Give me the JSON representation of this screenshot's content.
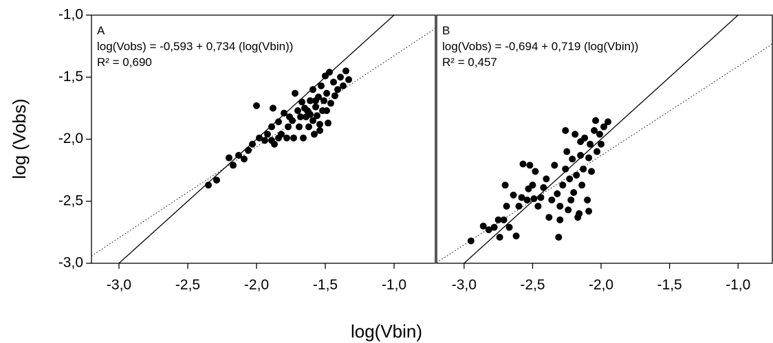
{
  "y_axis_label": "log (Vobs)",
  "x_axis_label": "log(Vbin)",
  "chart_data": [
    {
      "type": "scatter",
      "panel": "A",
      "equation": "log(Vobs) = -0,593 + 0,734 (log(Vbin))",
      "r_squared": "R² = 0,690",
      "fit": {
        "intercept": -0.593,
        "slope": 0.734
      },
      "color": "#000000",
      "xlim": [
        -3.2,
        -0.7
      ],
      "ylim": [
        -3,
        -1
      ],
      "xticks": [
        {
          "value": -3,
          "label": "-3,0"
        },
        {
          "value": -2.5,
          "label": "-2,5"
        },
        {
          "value": -2,
          "label": "-2,0"
        },
        {
          "value": -1.5,
          "label": "-1,5"
        },
        {
          "value": -1,
          "label": "-1,0"
        }
      ],
      "yticks": [
        {
          "value": -3,
          "label": "-3,0"
        },
        {
          "value": -2.5,
          "label": "-2,5"
        },
        {
          "value": -2,
          "label": "-2,0"
        },
        {
          "value": -1.5,
          "label": "-1,5"
        },
        {
          "value": -1,
          "label": "-1,0"
        }
      ],
      "x": [
        -2.35,
        -2.29,
        -2.2,
        -2.17,
        -2.13,
        -2.09,
        -2.06,
        -2.03,
        -2.0,
        -1.98,
        -1.94,
        -1.92,
        -1.89,
        -1.88,
        -1.87,
        -1.84,
        -1.82,
        -1.8,
        -1.78,
        -1.77,
        -1.74,
        -1.73,
        -1.72,
        -1.7,
        -1.69,
        -1.67,
        -1.66,
        -1.64,
        -1.63,
        -1.62,
        -1.61,
        -1.59,
        -1.59,
        -1.58,
        -1.57,
        -1.56,
        -1.55,
        -1.54,
        -1.53,
        -1.52,
        -1.51,
        -1.5,
        -1.49,
        -1.48,
        -1.47,
        -1.46,
        -1.44,
        -1.43,
        -1.41,
        -1.39,
        -1.37,
        -1.35,
        -1.33,
        -1.54,
        -1.68,
        -1.61,
        -1.49,
        -1.65,
        -1.57,
        -1.84,
        -1.89,
        -1.76
      ],
      "y": [
        -2.37,
        -2.33,
        -2.15,
        -2.21,
        -2.13,
        -2.16,
        -2.09,
        -2.04,
        -1.73,
        -1.99,
        -2.01,
        -1.96,
        -1.9,
        -1.75,
        -2.04,
        -1.86,
        -1.96,
        -1.79,
        -1.99,
        -1.9,
        -1.85,
        -1.99,
        -1.63,
        -1.77,
        -1.9,
        -1.7,
        -1.99,
        -1.82,
        -1.77,
        -1.9,
        -1.69,
        -1.6,
        -1.85,
        -1.96,
        -1.74,
        -1.81,
        -1.66,
        -1.88,
        -1.57,
        -1.77,
        -1.69,
        -1.49,
        -1.63,
        -1.87,
        -1.46,
        -1.71,
        -1.54,
        -1.65,
        -1.6,
        -1.5,
        -1.57,
        -1.45,
        -1.52,
        -1.93,
        -1.82,
        -1.8,
        -1.77,
        -1.75,
        -1.69,
        -1.99,
        -2.01,
        -1.82
      ]
    },
    {
      "type": "scatter",
      "panel": "B",
      "equation": "log(Vobs) = -0,694 + 0,719 (log(Vbin))",
      "r_squared": "R² = 0,457",
      "fit": {
        "intercept": -0.694,
        "slope": 0.719
      },
      "color": "#000000",
      "xlim": [
        -3.2,
        -0.75
      ],
      "ylim": [
        -3,
        -1
      ],
      "xticks": [
        {
          "value": -3,
          "label": "-3,0"
        },
        {
          "value": -2.5,
          "label": "-2,5"
        },
        {
          "value": -2,
          "label": "-2,0"
        },
        {
          "value": -1.5,
          "label": "-1,5"
        },
        {
          "value": -1,
          "label": "-1,0"
        }
      ],
      "x": [
        -2.95,
        -2.86,
        -2.82,
        -2.78,
        -2.75,
        -2.74,
        -2.71,
        -2.7,
        -2.69,
        -2.67,
        -2.64,
        -2.62,
        -2.6,
        -2.58,
        -2.57,
        -2.54,
        -2.52,
        -2.5,
        -2.49,
        -2.48,
        -2.46,
        -2.44,
        -2.42,
        -2.4,
        -2.38,
        -2.36,
        -2.34,
        -2.32,
        -2.31,
        -2.3,
        -2.28,
        -2.26,
        -2.25,
        -2.24,
        -2.23,
        -2.21,
        -2.2,
        -2.19,
        -2.18,
        -2.16,
        -2.15,
        -2.14,
        -2.13,
        -2.12,
        -2.1,
        -2.09,
        -2.08,
        -2.07,
        -2.05,
        -2.04,
        -2.03,
        -2.01,
        -2.0,
        -1.98,
        -1.95,
        -2.17,
        -2.09,
        -2.3,
        -2.53,
        -2.15,
        -2.22,
        -2.26
      ],
      "y": [
        -2.82,
        -2.7,
        -2.73,
        -2.71,
        -2.65,
        -2.79,
        -2.65,
        -2.37,
        -2.54,
        -2.71,
        -2.45,
        -2.78,
        -2.54,
        -2.47,
        -2.2,
        -2.49,
        -2.21,
        -2.37,
        -2.48,
        -2.26,
        -2.54,
        -2.47,
        -2.39,
        -2.32,
        -2.63,
        -2.49,
        -2.21,
        -2.44,
        -2.79,
        -2.54,
        -2.37,
        -2.24,
        -2.1,
        -2.57,
        -2.32,
        -2.16,
        -2.43,
        -1.96,
        -2.29,
        -2.6,
        -2.13,
        -2.37,
        -2.24,
        -1.99,
        -2.49,
        -2.15,
        -2.04,
        -2.26,
        -1.93,
        -1.85,
        -2.1,
        -1.96,
        -2.04,
        -1.9,
        -1.86,
        -2.63,
        -2.58,
        -2.65,
        -2.4,
        -2.02,
        -2.49,
        -1.93
      ]
    }
  ]
}
